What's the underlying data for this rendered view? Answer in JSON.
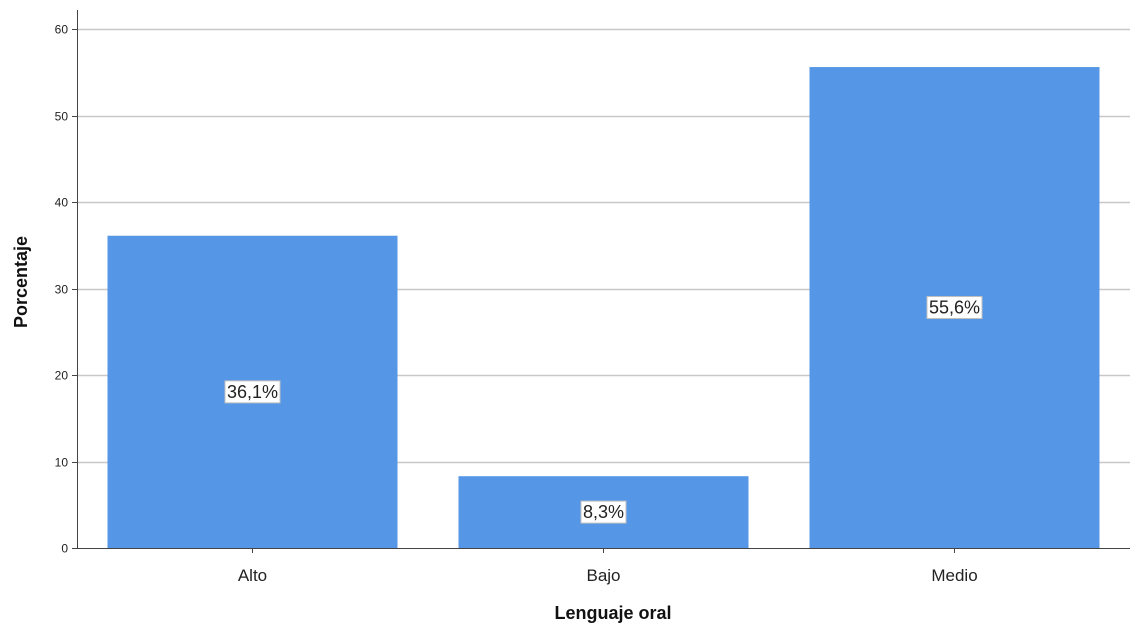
{
  "chart_data": {
    "type": "bar",
    "categories": [
      "Alto",
      "Bajo",
      "Medio"
    ],
    "values": [
      36.1,
      8.3,
      55.6
    ],
    "data_labels": [
      "36,1%",
      "8,3%",
      "55,6%"
    ],
    "xlabel": "Lenguaje oral",
    "ylabel": "Porcentaje",
    "ylim": [
      0,
      60
    ],
    "yticks": [
      0,
      10,
      20,
      30,
      40,
      50,
      60
    ],
    "grid": true,
    "bar_color": "#5596e6",
    "grid_color": "#c8c8c8"
  }
}
